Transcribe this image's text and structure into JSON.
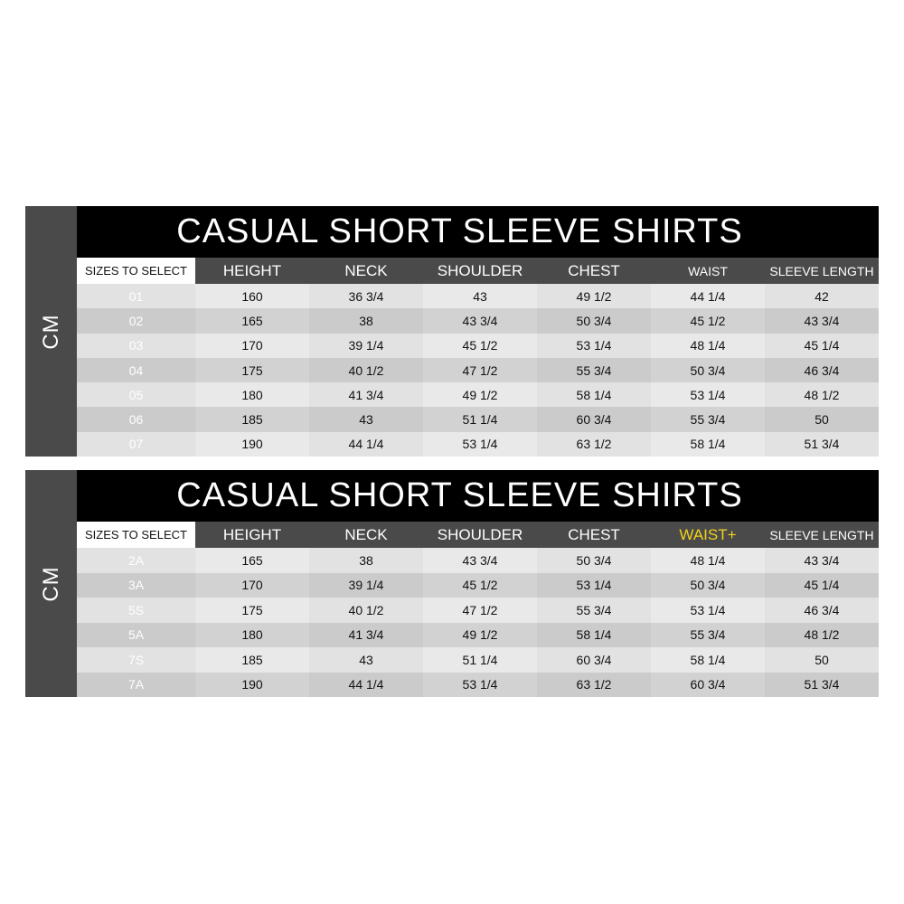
{
  "tables": [
    {
      "unit": "CM",
      "title": "CASUAL SHORT SLEEVE SHIRTS",
      "headers": [
        "SIZES TO SELECT",
        "HEIGHT",
        "NECK",
        "SHOULDER",
        "CHEST",
        "WAIST",
        "SLEEVE LENGTH"
      ],
      "rows": [
        [
          "01",
          "160",
          "36 3/4",
          "43",
          "49 1/2",
          "44 1/4",
          "42"
        ],
        [
          "02",
          "165",
          "38",
          "43 3/4",
          "50 3/4",
          "45 1/2",
          "43 3/4"
        ],
        [
          "03",
          "170",
          "39 1/4",
          "45 1/2",
          "53 1/4",
          "48 1/4",
          "45 1/4"
        ],
        [
          "04",
          "175",
          "40 1/2",
          "47 1/2",
          "55 3/4",
          "50 3/4",
          "46 3/4"
        ],
        [
          "05",
          "180",
          "41 3/4",
          "49 1/2",
          "58 1/4",
          "53 1/4",
          "48 1/2"
        ],
        [
          "06",
          "185",
          "43",
          "51 1/4",
          "60 3/4",
          "55 3/4",
          "50"
        ],
        [
          "07",
          "190",
          "44 1/4",
          "53 1/4",
          "63 1/2",
          "58 1/4",
          "51 3/4"
        ]
      ]
    },
    {
      "unit": "CM",
      "title": "CASUAL SHORT SLEEVE SHIRTS",
      "headers": [
        "SIZES TO SELECT",
        "HEIGHT",
        "NECK",
        "SHOULDER",
        "CHEST",
        "WAIST+",
        "SLEEVE LENGTH"
      ],
      "highlight_color": "#f2d21b",
      "rows": [
        [
          "2A",
          "165",
          "38",
          "43 3/4",
          "50 3/4",
          "48 1/4",
          "43 3/4"
        ],
        [
          "3A",
          "170",
          "39 1/4",
          "45 1/2",
          "53 1/4",
          "50 3/4",
          "45 1/4"
        ],
        [
          "5S",
          "175",
          "40 1/2",
          "47 1/2",
          "55 3/4",
          "53 1/4",
          "46 3/4"
        ],
        [
          "5A",
          "180",
          "41 3/4",
          "49 1/2",
          "58 1/4",
          "55 3/4",
          "48 1/2"
        ],
        [
          "7S",
          "185",
          "43",
          "51 1/4",
          "60 3/4",
          "58 1/4",
          "50"
        ],
        [
          "7A",
          "190",
          "44 1/4",
          "53 1/4",
          "63 1/2",
          "60 3/4",
          "51 3/4"
        ]
      ]
    }
  ]
}
